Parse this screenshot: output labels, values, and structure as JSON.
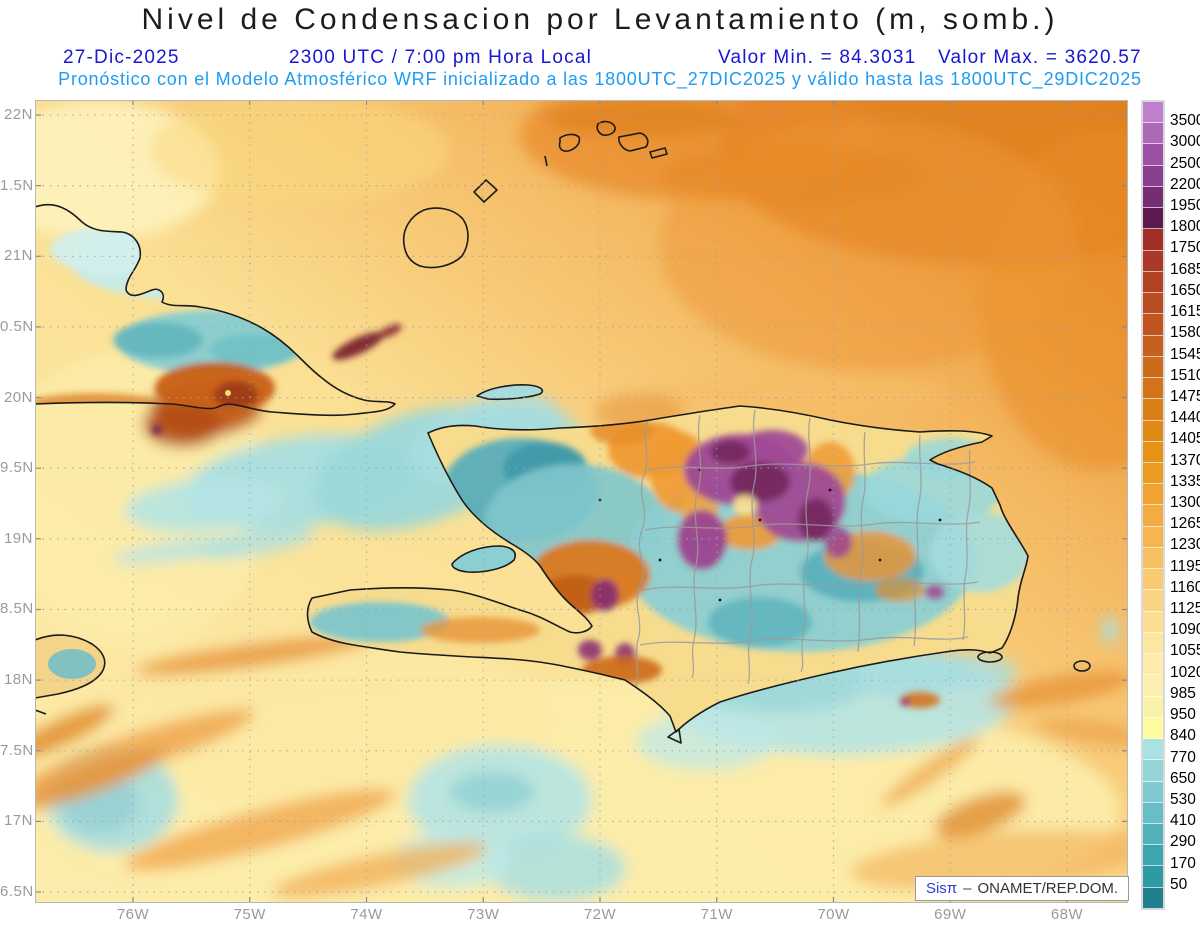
{
  "header": {
    "title": "Nivel de Condensacion por Levantamiento (m, somb.)",
    "date": "27-Dic-2025",
    "time_local": "2300 UTC / 7:00 pm Hora Local",
    "valor_min": "Valor Min. = 84.3031",
    "valor_max": "Valor Max. = 3620.57",
    "forecast_line": "Pronóstico con el Modelo Atmosférico WRF inicializado a las 1800UTC_27DIC2025 y válido hasta las  1800UTC_29DIC2025"
  },
  "axes": {
    "lat_labels": [
      "22N",
      "1.5N",
      "21N",
      "0.5N",
      "20N",
      "9.5N",
      "19N",
      "8.5N",
      "18N",
      "7.5N",
      "17N",
      "6.5N"
    ],
    "lon_labels": [
      "76W",
      "75W",
      "74W",
      "73W",
      "72W",
      "71W",
      "70W",
      "69W",
      "68W"
    ]
  },
  "colorbar": {
    "labels": [
      "3500",
      "3000",
      "2500",
      "2200",
      "1950",
      "1800",
      "1750",
      "1685",
      "1650",
      "1615",
      "1580",
      "1545",
      "1510",
      "1475",
      "1440",
      "1405",
      "1370",
      "1335",
      "1300",
      "1265",
      "1230",
      "1195",
      "1160",
      "1125",
      "1090",
      "1055",
      "1020",
      "985",
      "950",
      "840",
      "770",
      "650",
      "530",
      "410",
      "290",
      "170",
      "50"
    ],
    "colors": [
      "#c07fcc",
      "#ad68b8",
      "#9b52a4",
      "#894090",
      "#752e74",
      "#5c1a50",
      "#a22e28",
      "#aa3826",
      "#b14224",
      "#b84c22",
      "#bf5620",
      "#c6601e",
      "#cd6a1c",
      "#d4741a",
      "#da7e18",
      "#e08816",
      "#e69214",
      "#eb9c22",
      "#f0a232",
      "#f3ac42",
      "#f5b652",
      "#f7c062",
      "#f9ca72",
      "#fad482",
      "#fbde92",
      "#fce6a0",
      "#fdecac",
      "#fbf0b0",
      "#f9f3a8",
      "#fcfc9e",
      "#aae2e2",
      "#94d6d8",
      "#7ecad0",
      "#68bec6",
      "#52b2bc",
      "#3ca6b0",
      "#2e9aa6",
      "#217f8e"
    ]
  },
  "attribution": {
    "brand": "Sisπ",
    "separator": "–",
    "org": "ONAMET/REP.DOM."
  },
  "colors": {
    "header_blue": "#1717d2",
    "header_azure": "#1e9cf2",
    "axis_gray": "#9a9a9a",
    "grid_gray": "#9aa4ae",
    "coastline_black": "#1b1b1b",
    "province_border_gray": "#999999"
  }
}
